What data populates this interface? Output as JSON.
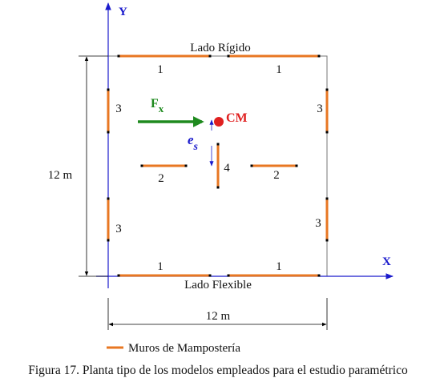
{
  "axes": {
    "y": "Y",
    "x": "X"
  },
  "sides": {
    "top": "Lado Rígido",
    "bottom": "Lado Flexible"
  },
  "wall_labels": [
    "1",
    "1",
    "1",
    "1",
    "3",
    "3",
    "3",
    "3",
    "2",
    "2",
    "4"
  ],
  "force": {
    "symbol": "F",
    "subscript": "x"
  },
  "center_of_mass": "CM",
  "eccentricity": {
    "symbol": "e",
    "subscript": "s"
  },
  "dimensions": {
    "height": "12 m",
    "width": "12 m"
  },
  "legend": "Muros de  Mampostería",
  "caption": "Figura 17. Planta tipo de los modelos empleados para el estudio paramétrico"
}
